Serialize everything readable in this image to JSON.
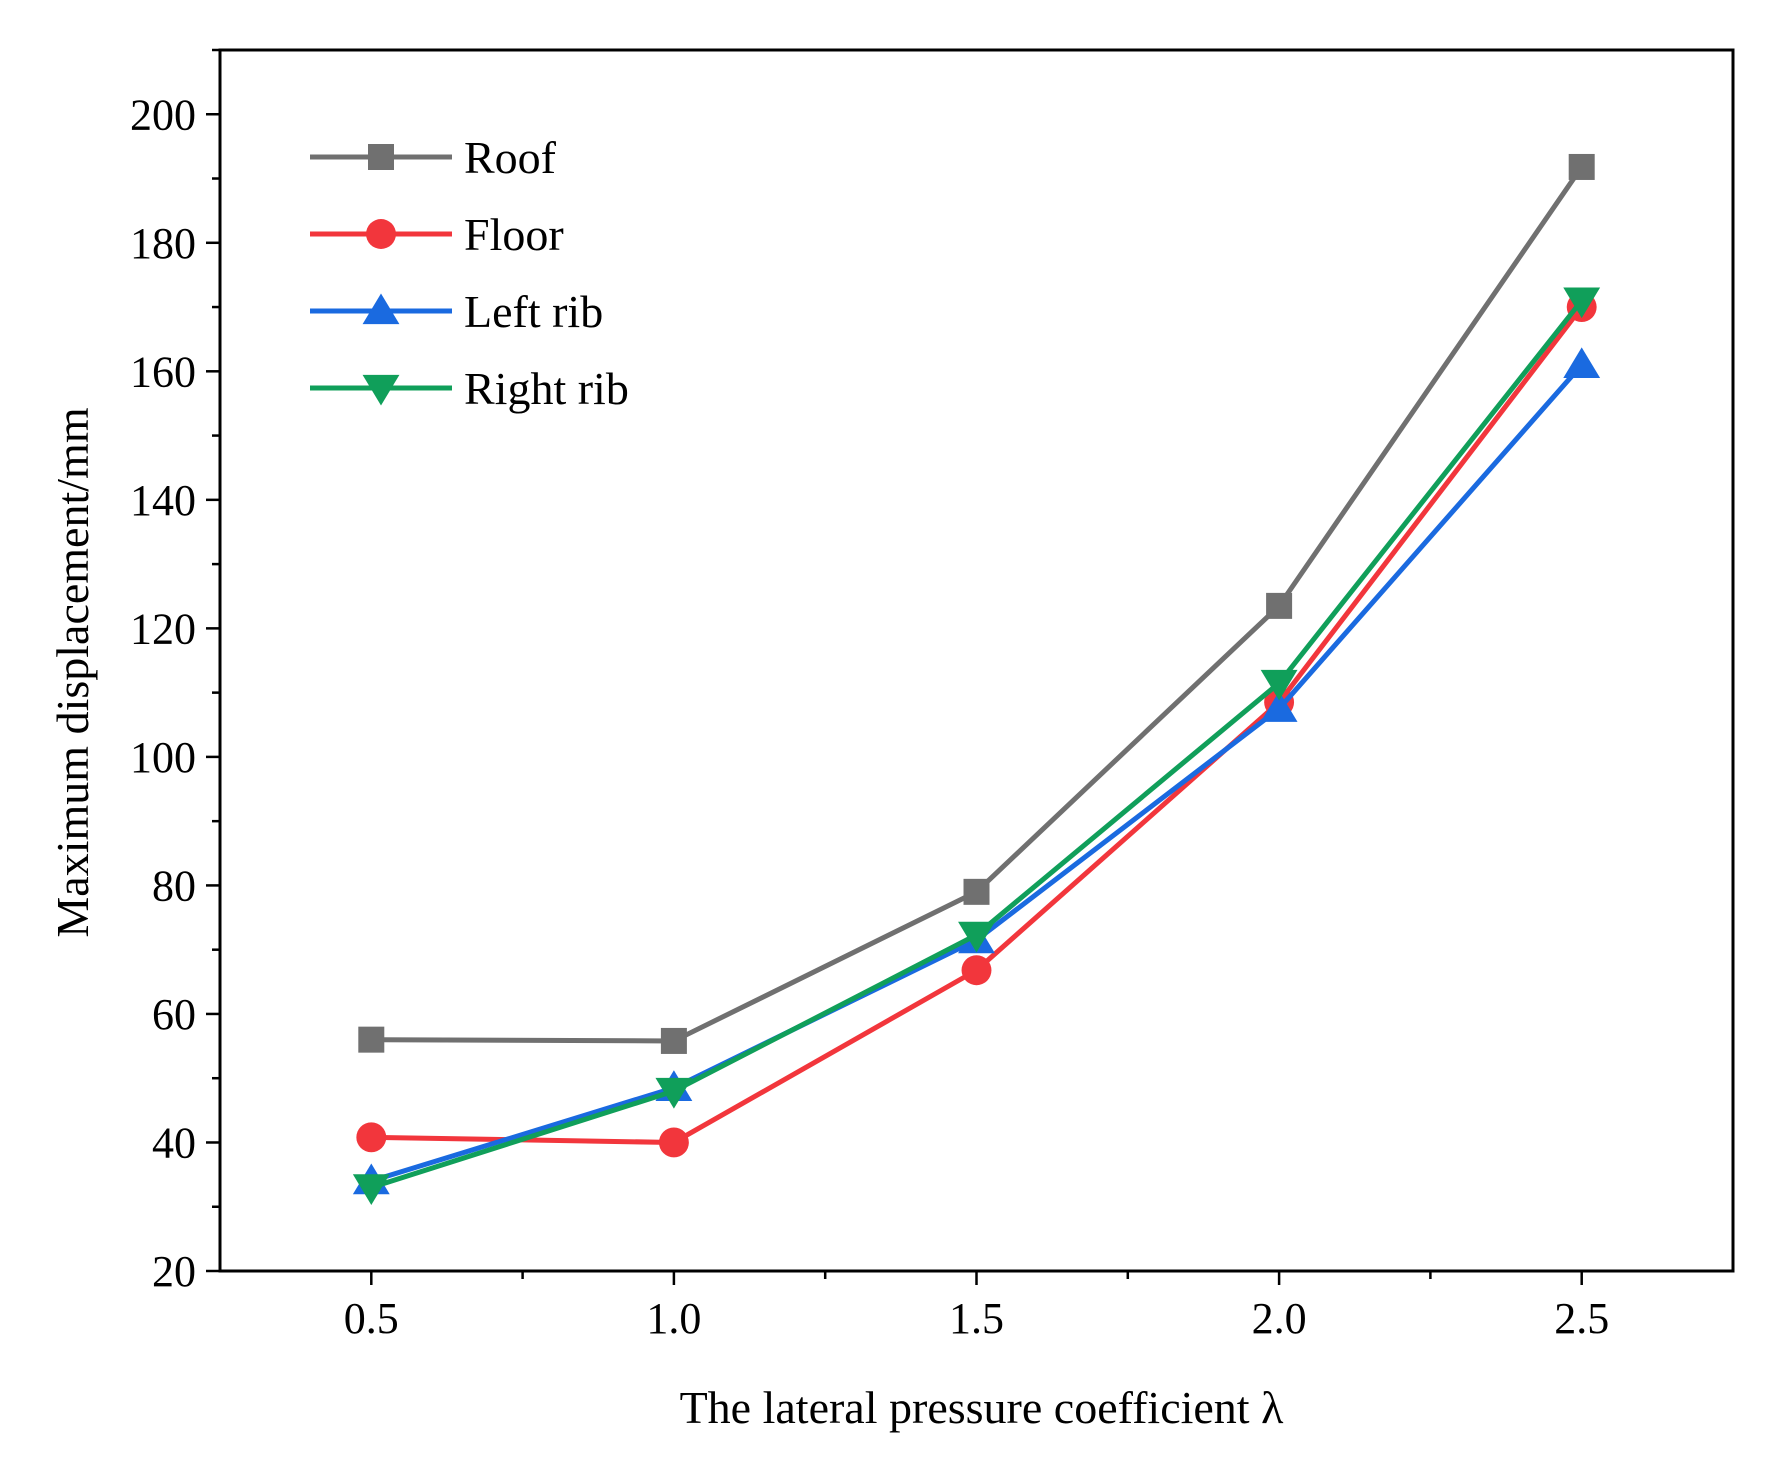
{
  "chart_data": {
    "type": "line",
    "title": "",
    "xlabel": "The lateral pressure coefficient λ",
    "ylabel": "Maximum displacement/mm",
    "x": [
      0.5,
      1.0,
      1.5,
      2.0,
      2.5
    ],
    "xlim": [
      0.25,
      2.75
    ],
    "ylim": [
      20,
      210
    ],
    "x_ticks": [
      "0.5",
      "1.0",
      "1.5",
      "2.0",
      "2.5"
    ],
    "y_ticks": [
      "20",
      "40",
      "60",
      "80",
      "100",
      "120",
      "140",
      "160",
      "180",
      "200"
    ],
    "grid": false,
    "legend_position": "top-left",
    "series": [
      {
        "name": "Roof",
        "marker": "square",
        "color": "#707070",
        "values": [
          56,
          55.8,
          79,
          123.5,
          191.8
        ]
      },
      {
        "name": "Floor",
        "marker": "circle",
        "color": "#f2363c",
        "values": [
          40.8,
          40,
          66.8,
          108.5,
          170
        ]
      },
      {
        "name": "Left rib",
        "marker": "triangle-up",
        "color": "#1a6ae0",
        "values": [
          34,
          48.5,
          71.5,
          107.5,
          161
        ]
      },
      {
        "name": "Right rib",
        "marker": "triangle-down",
        "color": "#109f5a",
        "values": [
          33,
          48,
          72.3,
          111.5,
          171
        ]
      }
    ]
  }
}
